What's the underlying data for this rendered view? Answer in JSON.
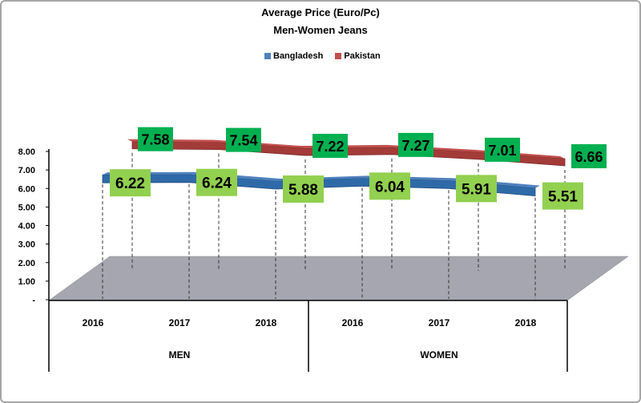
{
  "chart_data": {
    "type": "line",
    "title": "Average Price (Euro/Pc)",
    "subtitle": "Men-Women Jeans",
    "categories": [
      "2016",
      "2017",
      "2018",
      "2016",
      "2017",
      "2018"
    ],
    "groups": [
      {
        "label": "MEN",
        "categories": [
          "2016",
          "2017",
          "2018"
        ]
      },
      {
        "label": "WOMEN",
        "categories": [
          "2016",
          "2017",
          "2018"
        ]
      }
    ],
    "series": [
      {
        "name": "Bangladesh",
        "color": "#4f81bd",
        "values": [
          6.22,
          6.24,
          5.88,
          6.04,
          5.91,
          5.51
        ],
        "labels": [
          "6.22",
          "6.24",
          "5.88",
          "6.04",
          "5.91",
          "5.51"
        ]
      },
      {
        "name": "Pakistan",
        "color": "#c0504d",
        "values": [
          7.58,
          7.54,
          7.22,
          7.27,
          7.01,
          6.66
        ],
        "labels": [
          "7.58",
          "7.54",
          "7.22",
          "7.27",
          "7.01",
          "6.66"
        ]
      }
    ],
    "yticks": [
      "-",
      "1.00",
      "2.00",
      "3.00",
      "4.00",
      "5.00",
      "6.00",
      "7.00",
      "8.00"
    ],
    "ylim": [
      0,
      8
    ],
    "label_colors": {
      "Bangladesh": "#92d050",
      "Pakistan": "#00b050"
    },
    "floor_color": "#a6a6b0",
    "grid": false,
    "legend_position": "top"
  }
}
